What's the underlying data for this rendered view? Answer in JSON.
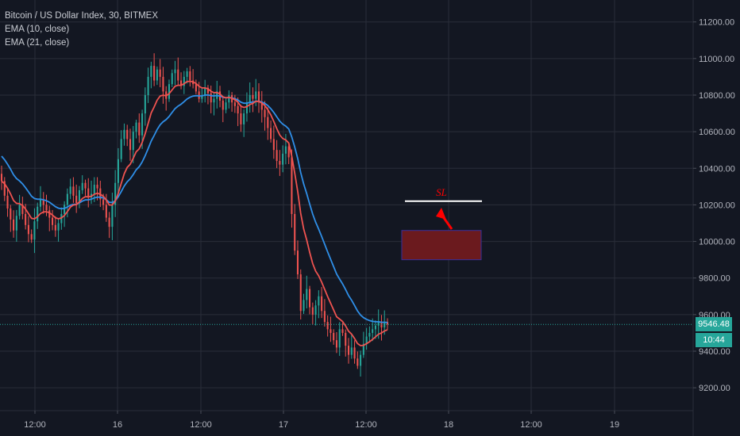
{
  "legend": {
    "title": "Bitcoin / US Dollar Index, 30, BITMEX",
    "ema1": "EMA (10, close)",
    "ema2": "EMA (21, close)"
  },
  "price_badge": "9546.48",
  "time_badge": "10:44",
  "sl_label": "SL",
  "colors": {
    "background": "#131722",
    "grid": "#2a2e39",
    "up": "#26a69a",
    "down": "#ef5350",
    "ema_fast": "#ef5350",
    "ema_slow": "#2f8fe8",
    "price_line": "#26a69a",
    "box_fill": "#6b1a1e",
    "box_border": "#3a2f9a",
    "arrow": "#ff0000",
    "sl_line": "#ffffff"
  },
  "chart_data": {
    "type": "candlestick",
    "symbol": "Bitcoin / US Dollar Index, 30, BITMEX",
    "interval": "30",
    "y_ticks": [
      9200,
      9400,
      9600,
      9800,
      10000,
      10200,
      10400,
      10600,
      10800,
      11000,
      11200
    ],
    "y_tick_labels": [
      "9200.00",
      "9400.00",
      "9600.00",
      "9800.00",
      "10000.00",
      "10200.00",
      "10400.00",
      "10600.00",
      "10800.00",
      "11000.00",
      "11200.00"
    ],
    "x_tick_labels": [
      "12:00",
      "16",
      "12:00",
      "17",
      "12:00",
      "18",
      "12:00",
      "19"
    ],
    "ylim": [
      9075,
      11320
    ],
    "last_price": 9546.48,
    "countdown": "10:44",
    "annotations": {
      "stop_loss_level": 10220,
      "stop_loss_label": "SL",
      "entry_zone": [
        9900,
        10060
      ]
    },
    "series": [
      {
        "name": "EMA (10, close)",
        "type": "line"
      },
      {
        "name": "EMA (21, close)",
        "type": "line"
      }
    ],
    "closes": [
      10330,
      10250,
      10180,
      10120,
      10060,
      10140,
      10200,
      10150,
      10090,
      10040,
      10010,
      10110,
      10190,
      10230,
      10200,
      10170,
      10130,
      10090,
      10060,
      10100,
      10150,
      10200,
      10260,
      10300,
      10250,
      10210,
      10280,
      10320,
      10290,
      10240,
      10260,
      10310,
      10290,
      10230,
      10200,
      10130,
      10080,
      10200,
      10320,
      10450,
      10560,
      10610,
      10560,
      10500,
      10600,
      10650,
      10580,
      10700,
      10800,
      10900,
      10960,
      10880,
      10940,
      10900,
      10820,
      10780,
      10860,
      10920,
      10940,
      10880,
      10850,
      10900,
      10930,
      10880,
      10860,
      10820,
      10780,
      10800,
      10840,
      10810,
      10760,
      10780,
      10820,
      10770,
      10720,
      10760,
      10800,
      10760,
      10740,
      10700,
      10640,
      10700,
      10760,
      10800,
      10780,
      10820,
      10760,
      10720,
      10680,
      10620,
      10560,
      10500,
      10440,
      10420,
      10480,
      10520,
      10460,
      10150,
      9950,
      9820,
      9620,
      9680,
      9740,
      9640,
      9600,
      9650,
      9700,
      9620,
      9560,
      9520,
      9500,
      9460,
      9420,
      9520,
      9500,
      9430,
      9380,
      9420,
      9360,
      9320,
      9380,
      9440,
      9480,
      9500,
      9520,
      9540,
      9560,
      9530,
      9560,
      9546
    ]
  }
}
